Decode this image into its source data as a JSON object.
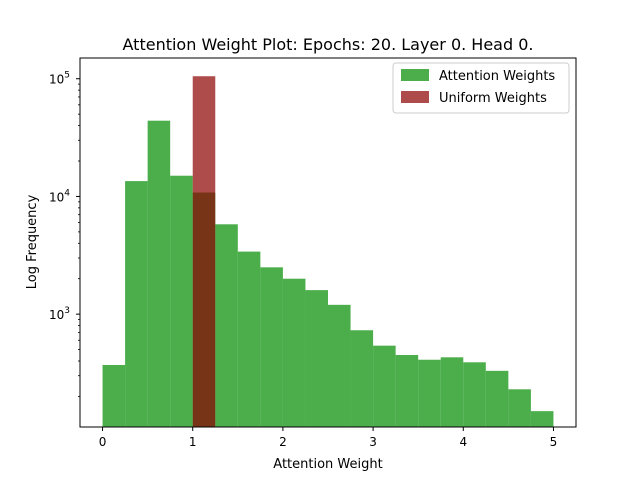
{
  "chart_data": {
    "type": "bar",
    "title": "Attention Weight Plot: Epochs: 20. Layer 0. Head 0.",
    "xlabel": "Attention Weight",
    "ylabel": "Log Frequency",
    "yscale": "log",
    "xlim": [
      -0.25,
      5.25
    ],
    "ylim": [
      110,
      150000
    ],
    "xticks": [
      0,
      1,
      2,
      3,
      4,
      5
    ],
    "yticks": [
      {
        "value": 1000,
        "base": "10",
        "exp": "3"
      },
      {
        "value": 10000,
        "base": "10",
        "exp": "4"
      },
      {
        "value": 100000,
        "base": "10",
        "exp": "5"
      }
    ],
    "grid": false,
    "legend_position": "top-right",
    "series": [
      {
        "name": "Attention Weights",
        "color": "#2ca02c",
        "opacity": 0.85,
        "bin_edges": [
          0.0,
          0.25,
          0.5,
          0.75,
          1.0,
          1.25,
          1.5,
          1.75,
          2.0,
          2.25,
          2.5,
          2.75,
          3.0,
          3.25,
          3.5,
          3.75,
          4.0,
          4.25,
          4.5,
          4.75,
          5.0
        ],
        "values": [
          370,
          13500,
          44000,
          15000,
          10800,
          5800,
          3400,
          2500,
          2000,
          1600,
          1200,
          730,
          540,
          450,
          410,
          430,
          390,
          330,
          230,
          150
        ]
      },
      {
        "name": "Uniform Weights",
        "color": "#8b0000",
        "opacity": 0.7,
        "bin_edges": [
          1.0,
          1.25
        ],
        "values": [
          105000
        ]
      }
    ]
  }
}
